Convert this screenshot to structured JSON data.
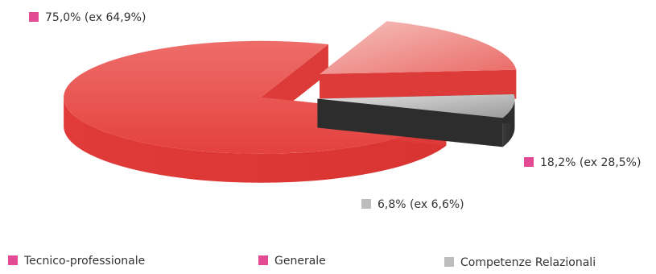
{
  "chart_data": {
    "type": "pie",
    "categories": [
      "Tecnico-professionale",
      "Generale",
      "Competenze Relazionali"
    ],
    "values": [
      75.0,
      18.2,
      6.8
    ],
    "previous_values": [
      64.9,
      28.5,
      6.6
    ],
    "data_labels": [
      "75,0% (ex 64,9%)",
      "18,2% (ex 28,5%)",
      "6,8% (ex 6,6%)"
    ],
    "colors": [
      "#e8514f",
      "#f0908c",
      "#404040"
    ],
    "legend_swatch_colors": [
      "#e24a93",
      "#e24a93",
      "#bdbdbd"
    ],
    "legend_position": "bottom",
    "style": "3d-exploded"
  }
}
